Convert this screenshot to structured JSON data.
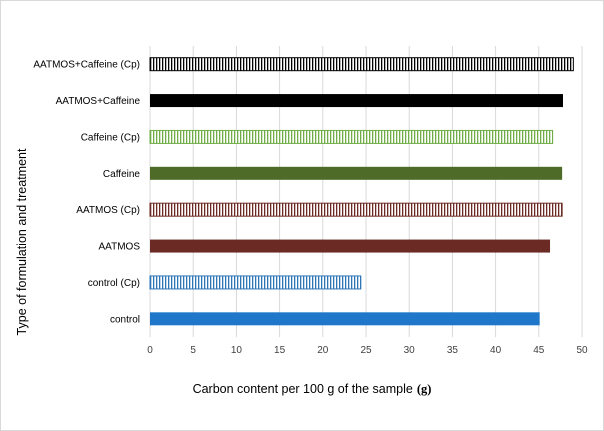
{
  "chart_data": {
    "type": "bar",
    "orientation": "horizontal",
    "title": "",
    "xlabel": "Carbon content per 100 g of the sample",
    "xlabel_unit": "(g)",
    "ylabel": "Type of formulation and treatment",
    "xlim": [
      0,
      50
    ],
    "xticks": [
      "0",
      "5",
      "10",
      "15",
      "20",
      "25",
      "30",
      "35",
      "40",
      "45",
      "50"
    ],
    "grid": "vertical",
    "legend": "none",
    "categories": [
      "control",
      "control (Cp)",
      "AATMOS",
      "AATMOS (Cp)",
      "Caffeine",
      "Caffeine (Cp)",
      "AATMOS+Caffeine",
      "AATMOS+Caffeine (Cp)"
    ],
    "values": [
      45.1,
      24.4,
      46.3,
      47.7,
      47.7,
      46.6,
      47.8,
      49.0
    ],
    "bar_styles": [
      {
        "fill": "solid",
        "color": "#1f77c9"
      },
      {
        "fill": "vertical-stripes",
        "color": "#2e75b6"
      },
      {
        "fill": "solid",
        "color": "#6b2b24"
      },
      {
        "fill": "vertical-stripes",
        "color": "#6b2b24"
      },
      {
        "fill": "solid",
        "color": "#4f6b28"
      },
      {
        "fill": "vertical-stripes",
        "color": "#70ad47"
      },
      {
        "fill": "solid",
        "color": "#000000"
      },
      {
        "fill": "vertical-stripes",
        "color": "#000000"
      }
    ]
  }
}
